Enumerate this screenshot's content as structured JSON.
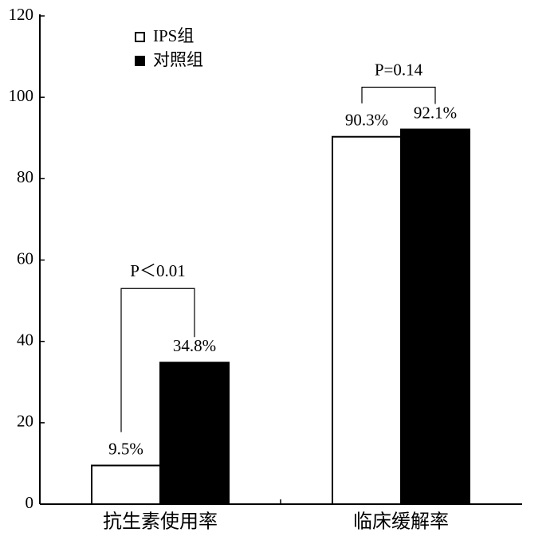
{
  "chart_data": {
    "type": "bar",
    "categories": [
      "抗生素使用率",
      "临床缓解率"
    ],
    "series": [
      {
        "name": "IPS组",
        "color": "#ffffff",
        "values": [
          9.5,
          90.3
        ],
        "value_labels": [
          "9.5%",
          "90.3%"
        ]
      },
      {
        "name": "对照组",
        "color": "#000000",
        "values": [
          34.8,
          92.1
        ],
        "value_labels": [
          "34.8%",
          "92.1%"
        ]
      }
    ],
    "annotations": [
      "P＜0.01",
      "P=0.14"
    ],
    "ylim": [
      0,
      120
    ],
    "yticks": [
      0,
      20,
      40,
      60,
      80,
      100,
      120
    ],
    "legend": "upper left"
  }
}
